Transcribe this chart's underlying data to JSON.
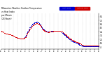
{
  "title": "Milwaukee Weather Outdoor Temperature\nvs Heat Index\nper Minute\n(24 Hours)",
  "bg_color": "#ffffff",
  "plot_bg_color": "#ffffff",
  "legend_labels": [
    "Heat Index",
    "Outdoor Temp"
  ],
  "legend_colors": [
    "#0000cc",
    "#cc0000"
  ],
  "temp_color": "#dd0000",
  "heat_color": "#0000cc",
  "yticks": [
    4,
    14,
    24,
    34,
    44,
    54,
    64,
    74,
    84
  ],
  "ylim": [
    0,
    92
  ],
  "xlim": [
    0,
    1440
  ],
  "figsize": [
    1.6,
    0.87
  ],
  "dpi": 100,
  "temp_data": [
    46,
    45,
    45,
    44,
    44,
    43,
    43,
    42,
    42,
    41,
    41,
    40,
    40,
    40,
    39,
    39,
    39,
    38,
    38,
    38,
    38,
    37,
    37,
    37,
    36,
    36,
    36,
    35,
    35,
    34,
    34,
    33,
    33,
    32,
    32,
    31,
    31,
    30,
    30,
    29,
    29,
    28,
    28,
    28,
    28,
    27,
    27,
    27,
    27,
    27,
    27,
    27,
    27,
    27,
    27,
    27,
    28,
    28,
    29,
    30,
    31,
    33,
    35,
    37,
    39,
    41,
    43,
    45,
    47,
    49,
    51,
    52,
    54,
    55,
    57,
    58,
    59,
    60,
    61,
    62,
    63,
    64,
    64,
    65,
    65,
    65,
    66,
    66,
    66,
    66,
    65,
    65,
    65,
    64,
    63,
    62,
    61,
    59,
    57,
    55,
    53,
    52,
    51,
    50,
    49,
    48,
    47,
    46,
    46,
    45,
    45,
    44,
    44,
    44,
    43,
    43,
    43,
    43,
    44,
    44,
    44,
    44,
    44,
    45,
    45,
    45,
    45,
    45,
    46,
    46,
    46,
    46,
    46,
    46,
    46,
    46,
    46,
    46,
    46,
    46,
    46,
    46,
    46,
    46,
    46,
    46,
    45,
    45,
    45,
    44,
    44,
    43,
    43,
    42,
    41,
    40,
    39,
    38,
    37,
    36,
    35,
    34,
    33,
    32,
    31,
    30,
    29,
    28,
    28,
    27,
    26,
    25,
    25,
    24,
    23,
    23,
    22,
    22,
    21,
    21,
    20,
    20,
    19,
    19,
    18,
    18,
    17,
    17,
    16,
    16,
    15,
    15,
    14,
    14,
    13,
    13,
    12,
    12,
    11,
    11,
    10,
    10,
    10,
    9,
    9,
    9,
    9,
    9,
    9,
    9,
    9,
    9,
    9,
    9,
    9,
    9,
    9,
    9,
    9,
    9,
    9,
    9,
    9,
    9,
    9,
    9,
    9,
    9,
    9,
    9,
    9,
    9,
    9,
    9,
    9,
    9,
    9,
    9,
    9,
    9
  ],
  "heat_data": [
    46,
    45,
    45,
    44,
    44,
    43,
    43,
    42,
    42,
    41,
    41,
    40,
    40,
    40,
    39,
    39,
    39,
    38,
    38,
    38,
    38,
    37,
    37,
    37,
    36,
    36,
    36,
    35,
    35,
    34,
    34,
    33,
    33,
    32,
    32,
    31,
    31,
    30,
    30,
    29,
    29,
    28,
    28,
    28,
    28,
    27,
    27,
    27,
    27,
    27,
    27,
    27,
    27,
    27,
    27,
    27,
    28,
    28,
    30,
    32,
    34,
    36,
    38,
    41,
    43,
    45,
    47,
    49,
    51,
    53,
    55,
    56,
    58,
    60,
    61,
    62,
    63,
    64,
    65,
    66,
    67,
    67,
    68,
    68,
    69,
    69,
    69,
    70,
    70,
    70,
    69,
    69,
    68,
    67,
    66,
    65,
    63,
    61,
    59,
    57,
    55,
    54,
    53,
    52,
    51,
    50,
    49,
    48,
    47,
    47,
    46,
    46,
    45,
    45,
    45,
    44,
    44,
    44,
    44,
    45,
    45,
    45,
    45,
    46,
    46,
    46,
    46,
    46,
    47,
    47,
    47,
    47,
    47,
    47,
    47,
    47,
    47,
    47,
    47,
    47,
    47,
    47,
    47,
    46,
    46,
    46,
    45,
    45,
    44,
    43,
    42,
    41,
    40,
    39,
    38,
    37,
    36,
    35,
    34,
    33,
    32,
    31,
    30,
    29,
    28,
    27,
    26,
    25,
    24,
    24,
    23,
    22,
    22,
    21,
    20,
    20,
    19,
    19,
    18,
    18,
    17,
    17,
    16,
    16,
    15,
    15,
    14,
    14,
    13,
    13,
    12,
    12,
    11,
    11,
    10,
    10,
    9,
    9,
    8,
    8,
    7,
    7,
    7,
    6,
    6,
    6,
    6,
    6,
    6,
    6,
    6,
    6,
    6,
    6,
    6,
    6,
    6,
    6,
    6,
    6,
    6,
    6,
    6,
    6,
    6,
    6,
    6,
    6,
    6,
    6,
    6,
    6,
    6,
    6,
    6,
    6,
    6,
    6,
    6,
    6
  ]
}
